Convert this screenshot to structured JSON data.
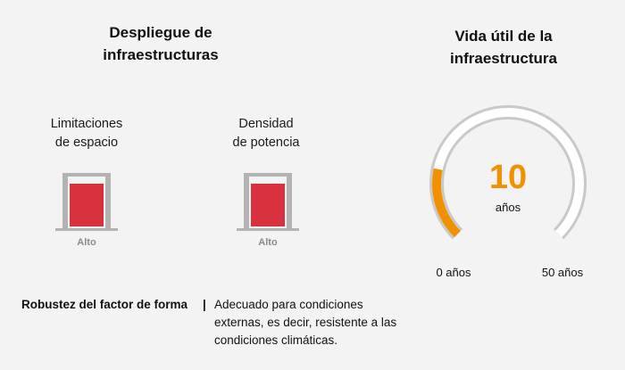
{
  "deployment": {
    "title_line1": "Despliegue de",
    "title_line2": "infraestructuras",
    "metrics": [
      {
        "label_line1": "Limitaciones",
        "label_line2": "de espacio",
        "level": "Alto",
        "fill_fraction": 0.85
      },
      {
        "label_line1": "Densidad",
        "label_line2": "de potencia",
        "level": "Alto",
        "fill_fraction": 0.85
      }
    ]
  },
  "lifespan": {
    "title_line1": "Vida útil de la",
    "title_line2": "infraestructura",
    "value": 10,
    "value_display": "10",
    "unit": "años",
    "min_label": "0 años",
    "max_label": "50 años",
    "min": 0,
    "max": 50,
    "colors": {
      "accent": "#f29100",
      "track": "#c9c9c9",
      "bar": "#d8323f"
    }
  },
  "robustness": {
    "label": "Robustez del factor de forma",
    "separator": "|",
    "text_line1": "Adecuado para condiciones",
    "text_line2": "externas, es decir, resistente a las",
    "text_line3": "condiciones climáticas."
  }
}
